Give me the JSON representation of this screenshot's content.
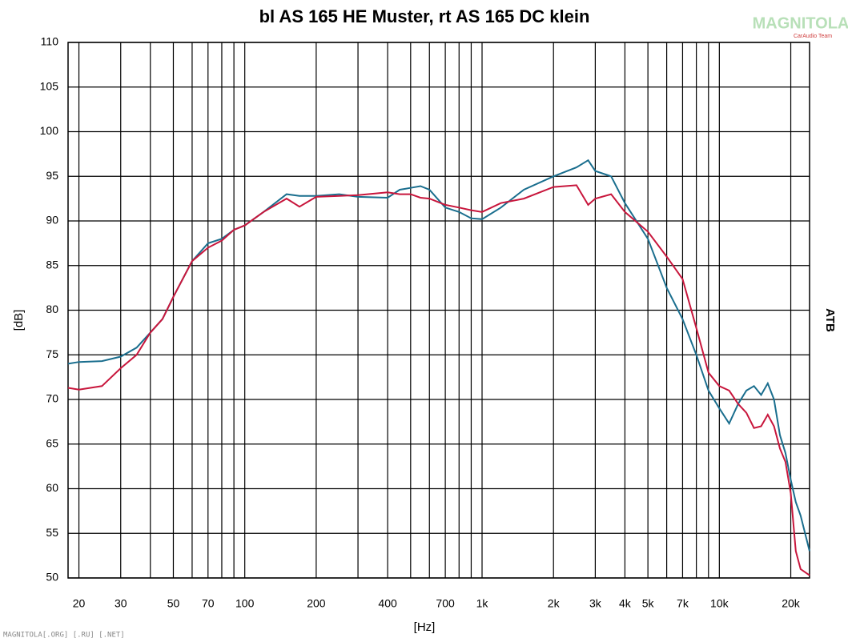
{
  "chart_data": {
    "type": "line",
    "title": "bl AS 165 HE Muster,  rt AS 165 DC klein",
    "x_label": "[Hz]",
    "y_label": "[dB]",
    "side_label": "ATB",
    "watermark": "MAGNITOLA",
    "watermark_sub": "CarAudio Team",
    "footer": "MAGNITOLA[.ORG] [.RU] [.NET]",
    "x_scale": "log",
    "grid": true,
    "xlim": [
      18,
      24000
    ],
    "ylim": [
      50,
      110
    ],
    "yticks": [
      50,
      55,
      60,
      65,
      70,
      75,
      80,
      85,
      90,
      95,
      100,
      105,
      110
    ],
    "xticks": [
      20,
      30,
      50,
      70,
      100,
      200,
      400,
      700,
      {
        "value": 1000,
        "label": "1k"
      },
      {
        "value": 2000,
        "label": "2k"
      },
      {
        "value": 3000,
        "label": "3k"
      },
      {
        "value": 4000,
        "label": "4k"
      },
      {
        "value": 5000,
        "label": "5k"
      },
      {
        "value": 7000,
        "label": "7k"
      },
      {
        "value": 10000,
        "label": "10k"
      },
      {
        "value": 20000,
        "label": "20k"
      }
    ],
    "xminor": [
      40,
      60,
      80,
      90,
      300,
      500,
      600,
      800,
      900,
      6000,
      8000,
      9000
    ],
    "x": [
      18,
      20,
      25,
      30,
      35,
      40,
      45,
      50,
      60,
      70,
      80,
      90,
      100,
      120,
      150,
      170,
      200,
      250,
      300,
      400,
      450,
      500,
      550,
      600,
      700,
      800,
      900,
      1000,
      1200,
      1500,
      2000,
      2500,
      2800,
      3000,
      3500,
      4000,
      5000,
      6000,
      7000,
      8000,
      9000,
      10000,
      11000,
      12000,
      13000,
      14000,
      15000,
      16000,
      17000,
      18000,
      19000,
      20000,
      21000,
      22000,
      24000
    ],
    "series": [
      {
        "color": "#1a6e8e",
        "values": [
          74,
          74.2,
          74.3,
          74.8,
          75.8,
          77.5,
          79,
          81.5,
          85.5,
          87.5,
          88,
          89,
          89.5,
          91,
          93,
          92.8,
          92.8,
          93,
          92.7,
          92.6,
          93.5,
          93.7,
          93.9,
          93.5,
          91.5,
          91,
          90.3,
          90.2,
          91.5,
          93.5,
          95,
          96,
          96.8,
          95.6,
          95,
          92,
          88,
          82.5,
          79,
          75,
          71,
          69,
          67.3,
          69.5,
          71,
          71.5,
          70.5,
          71.8,
          70,
          66,
          64,
          61,
          58.5,
          57,
          53
        ]
      },
      {
        "color": "#c8163c",
        "values": [
          71.3,
          71.1,
          71.5,
          73.5,
          75,
          77.5,
          79,
          81.5,
          85.5,
          87,
          87.8,
          89,
          89.5,
          91,
          92.5,
          91.6,
          92.7,
          92.8,
          92.9,
          93.2,
          93,
          93,
          92.6,
          92.5,
          91.8,
          91.5,
          91.2,
          91,
          92,
          92.5,
          93.8,
          94,
          91.8,
          92.5,
          93,
          91,
          88.8,
          86,
          83.5,
          78,
          73,
          71.5,
          71,
          69.5,
          68.5,
          66.8,
          67,
          68.3,
          67,
          64.5,
          63,
          59.5,
          53,
          51,
          50.3
        ]
      }
    ]
  }
}
